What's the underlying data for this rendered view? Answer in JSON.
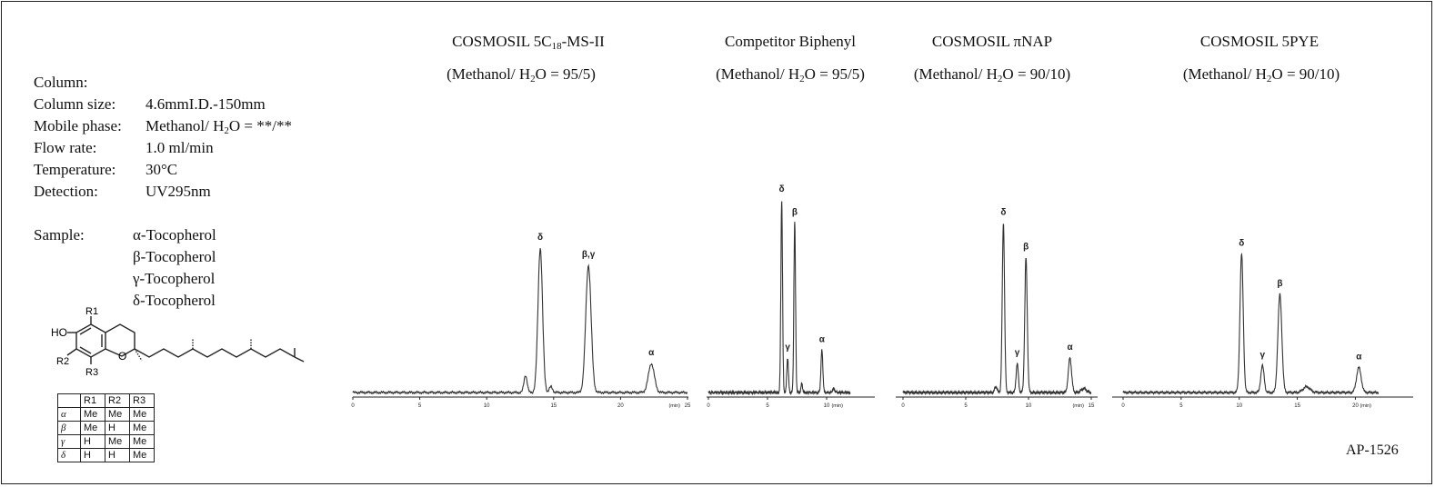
{
  "conditions": {
    "column_label": "Column:",
    "column_size_label": "Column size:",
    "column_size_value": "4.6mmI.D.-150mm",
    "mobile_phase_label": "Mobile phase:",
    "mobile_phase_pre": "Methanol/ H",
    "mobile_phase_sub": "2",
    "mobile_phase_post": "O = **/**",
    "flow_rate_label": "Flow rate:",
    "flow_rate_value": "1.0 ml/min",
    "temperature_label": "Temperature:",
    "temperature_value": "30°C",
    "detection_label": "Detection:",
    "detection_value": "UV295nm",
    "sample_label": "Sample:",
    "samples": [
      "α-Tocopherol",
      "β-Tocopherol",
      "γ-Tocopherol",
      "δ-Tocopherol"
    ]
  },
  "structure": {
    "labels": {
      "ho": "HO",
      "r1": "R1",
      "r2": "R2",
      "r3": "R3",
      "o": "O"
    },
    "table_header": [
      "",
      "R1",
      "R2",
      "R3"
    ],
    "table_rows": [
      [
        "α",
        "Me",
        "Me",
        "Me"
      ],
      [
        "β",
        "Me",
        "H",
        "Me"
      ],
      [
        "γ",
        "H",
        "Me",
        "Me"
      ],
      [
        "δ",
        "H",
        "H",
        "Me"
      ]
    ]
  },
  "code": "AP-1526",
  "chart_data": [
    {
      "type": "line",
      "title_pre": "COSMOSIL  5C",
      "title_sub": "18",
      "title_post": "-MS-II",
      "subtitle_pre": "(Methanol/ H",
      "subtitle_sub": "2",
      "subtitle_post": "O = 95/5)",
      "xunit": "(min)",
      "xlim": [
        0,
        25
      ],
      "xticks": [
        0,
        5,
        10,
        15,
        20,
        25
      ],
      "peaks": [
        {
          "label": "δ",
          "t": 14.0,
          "h": 0.75,
          "w": 0.17
        },
        {
          "label": "β,γ",
          "t": 17.6,
          "h": 0.66,
          "w": 0.2
        },
        {
          "label": "α",
          "t": 22.3,
          "h": 0.15,
          "w": 0.22
        }
      ],
      "minor_peaks": [
        {
          "t": 12.9,
          "h": 0.09,
          "w": 0.12
        },
        {
          "t": 14.8,
          "h": 0.03,
          "w": 0.12
        }
      ]
    },
    {
      "type": "line",
      "title_pre": "Competitor Biphenyl",
      "title_sub": "",
      "title_post": "",
      "subtitle_pre": "(Methanol/ H",
      "subtitle_sub": "2",
      "subtitle_post": "O = 95/5)",
      "xunit": "(min)",
      "xlim": [
        0,
        12
      ],
      "xticks": [
        0,
        5,
        10
      ],
      "peaks": [
        {
          "label": "δ",
          "t": 6.2,
          "h": 1.0,
          "w": 0.07
        },
        {
          "label": "γ",
          "t": 6.7,
          "h": 0.18,
          "w": 0.07
        },
        {
          "label": "β",
          "t": 7.3,
          "h": 0.88,
          "w": 0.07
        },
        {
          "label": "α",
          "t": 9.6,
          "h": 0.22,
          "w": 0.08
        }
      ],
      "minor_peaks": [
        {
          "t": 7.9,
          "h": 0.05,
          "w": 0.06
        },
        {
          "t": 10.6,
          "h": 0.02,
          "w": 0.1
        }
      ]
    },
    {
      "type": "line",
      "title_pre": "COSMOSIL  πNAP",
      "title_sub": "",
      "title_post": "",
      "subtitle_pre": "(Methanol/ H",
      "subtitle_sub": "2",
      "subtitle_post": "O = 90/10)",
      "xunit": "(min)",
      "xlim": [
        0,
        15
      ],
      "xticks": [
        0,
        5,
        10,
        15
      ],
      "peaks": [
        {
          "label": "δ",
          "t": 8.0,
          "h": 0.88,
          "w": 0.09
        },
        {
          "label": "γ",
          "t": 9.1,
          "h": 0.15,
          "w": 0.09
        },
        {
          "label": "β",
          "t": 9.8,
          "h": 0.7,
          "w": 0.1
        },
        {
          "label": "α",
          "t": 13.3,
          "h": 0.18,
          "w": 0.13
        }
      ],
      "minor_peaks": [
        {
          "t": 7.4,
          "h": 0.03,
          "w": 0.1
        },
        {
          "t": 14.4,
          "h": 0.02,
          "w": 0.2
        }
      ]
    },
    {
      "type": "line",
      "title_pre": "COSMOSIL  5PYE",
      "title_sub": "",
      "title_post": "",
      "subtitle_pre": "(Methanol/ H",
      "subtitle_sub": "2",
      "subtitle_post": "O = 90/10)",
      "xunit": "(min)",
      "xlim": [
        0,
        22
      ],
      "xticks": [
        0,
        5,
        10,
        15,
        20
      ],
      "peaks": [
        {
          "label": "δ",
          "t": 10.2,
          "h": 0.72,
          "w": 0.14
        },
        {
          "label": "γ",
          "t": 12.0,
          "h": 0.14,
          "w": 0.14
        },
        {
          "label": "β",
          "t": 13.5,
          "h": 0.51,
          "w": 0.17
        },
        {
          "label": "α",
          "t": 20.3,
          "h": 0.13,
          "w": 0.2
        }
      ],
      "minor_peaks": [
        {
          "t": 15.8,
          "h": 0.03,
          "w": 0.3
        }
      ]
    }
  ]
}
